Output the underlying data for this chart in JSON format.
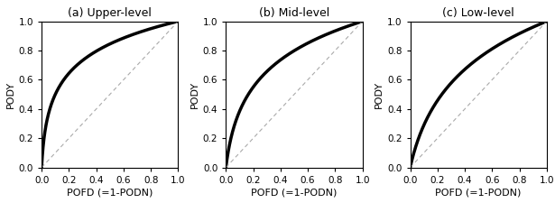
{
  "titles": [
    "(a) Upper-level",
    "(b) Mid-level",
    "(c) Low-level"
  ],
  "xlabel": "POFD (=1-PODN)",
  "ylabel": "PODY",
  "xlim": [
    0.0,
    1.0
  ],
  "ylim": [
    0.0,
    1.0
  ],
  "xticks": [
    0.0,
    0.2,
    0.4,
    0.6,
    0.8,
    1.0
  ],
  "yticks": [
    0.0,
    0.2,
    0.4,
    0.6,
    0.8,
    1.0
  ],
  "curve_alpha": [
    80,
    25,
    10
  ],
  "curve_color": "#000000",
  "curve_linewidth": 2.5,
  "diag_color": "#aaaaaa",
  "diag_linewidth": 0.8,
  "background_color": "#ffffff",
  "title_fontsize": 9,
  "axis_label_fontsize": 8,
  "tick_fontsize": 7.5
}
